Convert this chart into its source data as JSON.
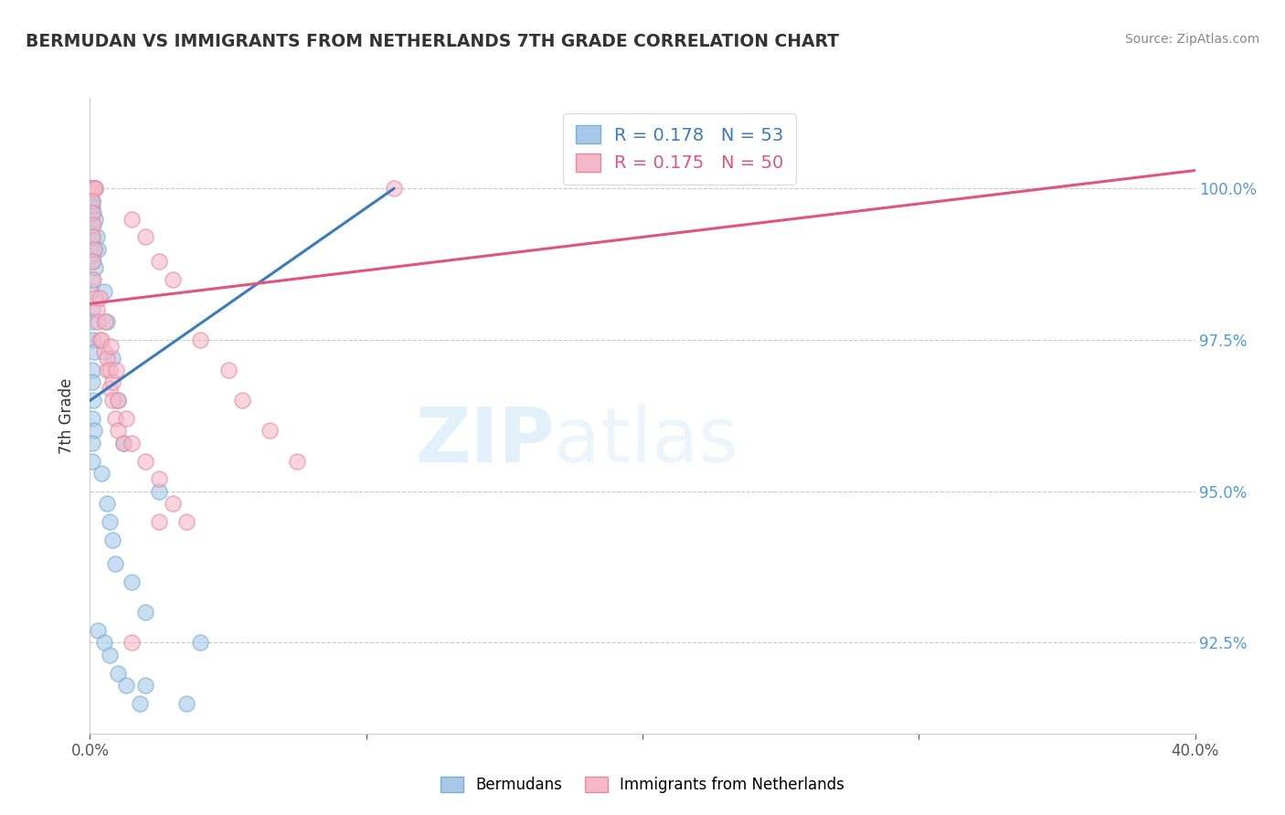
{
  "title": "BERMUDAN VS IMMIGRANTS FROM NETHERLANDS 7TH GRADE CORRELATION CHART",
  "source": "Source: ZipAtlas.com",
  "ylabel": "7th Grade",
  "xlim": [
    0.0,
    40.0
  ],
  "ylim": [
    91.0,
    101.5
  ],
  "xtick_positions": [
    0.0,
    10.0,
    20.0,
    30.0,
    40.0
  ],
  "xtick_labels": [
    "0.0%",
    "",
    "",
    "",
    "40.0%"
  ],
  "ytick_positions": [
    92.5,
    95.0,
    97.5,
    100.0
  ],
  "ytick_labels": [
    "92.5%",
    "95.0%",
    "97.5%",
    "100.0%"
  ],
  "grid_color": "#c8c8c8",
  "background_color": "#ffffff",
  "series1_name": "Bermudans",
  "series1_scatter_color": "#a8c8e8",
  "series1_scatter_edge": "#7aafd4",
  "series1_line_color": "#3a7bbf",
  "series1_R": 0.178,
  "series1_N": 53,
  "series2_name": "Immigrants from Netherlands",
  "series2_scatter_color": "#f4b8c8",
  "series2_scatter_edge": "#e888a0",
  "series2_line_color": "#e05580",
  "series2_R": 0.175,
  "series2_N": 50,
  "trend1_x0": 0.0,
  "trend1_y0": 96.5,
  "trend1_x1": 11.0,
  "trend1_y1": 100.0,
  "trend2_x0": 0.0,
  "trend2_y0": 98.1,
  "trend2_x1": 40.0,
  "trend2_y1": 100.3,
  "watermark_zip": "ZIP",
  "watermark_atlas": "atlas",
  "series1_x": [
    0.05,
    0.08,
    0.1,
    0.12,
    0.15,
    0.18,
    0.05,
    0.08,
    0.1,
    0.12,
    0.08,
    0.1,
    0.15,
    0.12,
    0.08,
    0.05,
    0.1,
    0.08,
    0.12,
    0.15,
    0.1,
    0.08,
    0.12,
    0.1,
    0.15,
    0.08,
    0.1,
    0.2,
    0.25,
    0.3,
    0.2,
    0.5,
    0.6,
    0.8,
    1.0,
    1.2,
    0.4,
    0.6,
    0.7,
    0.8,
    0.9,
    1.5,
    2.0,
    0.3,
    0.5,
    0.7,
    1.0,
    1.3,
    1.8,
    2.5,
    4.0,
    2.0,
    3.5
  ],
  "series1_y": [
    100.0,
    100.0,
    100.0,
    100.0,
    100.0,
    100.0,
    99.8,
    99.8,
    99.7,
    99.6,
    99.4,
    99.2,
    99.0,
    98.8,
    98.5,
    98.3,
    98.0,
    97.8,
    97.5,
    97.3,
    97.0,
    96.8,
    96.5,
    96.2,
    96.0,
    95.8,
    95.5,
    99.5,
    99.2,
    99.0,
    98.7,
    98.3,
    97.8,
    97.2,
    96.5,
    95.8,
    95.3,
    94.8,
    94.5,
    94.2,
    93.8,
    93.5,
    93.0,
    92.7,
    92.5,
    92.3,
    92.0,
    91.8,
    91.5,
    95.0,
    92.5,
    91.8,
    91.5
  ],
  "series2_x": [
    0.05,
    0.08,
    0.12,
    0.15,
    0.18,
    0.08,
    0.1,
    0.12,
    0.08,
    0.15,
    0.1,
    0.12,
    0.2,
    0.25,
    0.3,
    0.35,
    0.5,
    0.6,
    0.7,
    0.8,
    0.9,
    1.0,
    1.2,
    1.5,
    2.0,
    2.5,
    3.0,
    0.4,
    0.6,
    0.7,
    0.8,
    1.0,
    1.3,
    1.5,
    2.0,
    2.5,
    3.0,
    3.5,
    4.0,
    5.0,
    5.5,
    6.5,
    7.5,
    0.35,
    0.55,
    0.75,
    0.95,
    1.5,
    2.5,
    11.0
  ],
  "series2_y": [
    100.0,
    100.0,
    100.0,
    100.0,
    100.0,
    99.8,
    99.6,
    99.4,
    99.2,
    99.0,
    98.8,
    98.5,
    98.2,
    98.0,
    97.8,
    97.5,
    97.3,
    97.0,
    96.7,
    96.5,
    96.2,
    96.0,
    95.8,
    99.5,
    99.2,
    98.8,
    98.5,
    97.5,
    97.2,
    97.0,
    96.8,
    96.5,
    96.2,
    95.8,
    95.5,
    95.2,
    94.8,
    94.5,
    97.5,
    97.0,
    96.5,
    96.0,
    95.5,
    98.2,
    97.8,
    97.4,
    97.0,
    92.5,
    94.5,
    100.0
  ]
}
